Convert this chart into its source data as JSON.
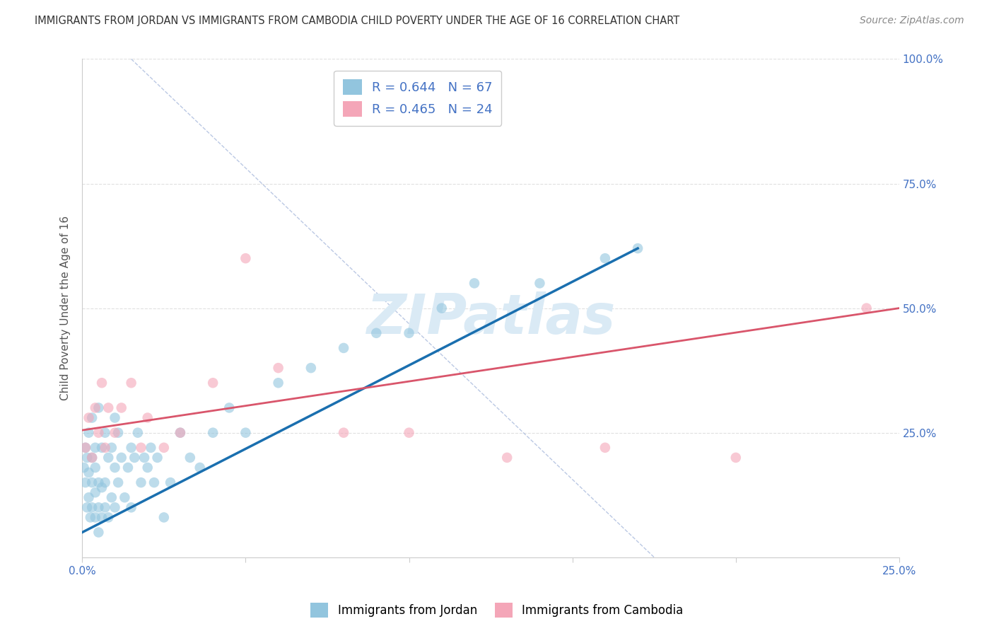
{
  "title": "IMMIGRANTS FROM JORDAN VS IMMIGRANTS FROM CAMBODIA CHILD POVERTY UNDER THE AGE OF 16 CORRELATION CHART",
  "source": "Source: ZipAtlas.com",
  "ylabel": "Child Poverty Under the Age of 16",
  "legend_labels": [
    "Immigrants from Jordan",
    "Immigrants from Cambodia"
  ],
  "R_jordan": 0.644,
  "N_jordan": 67,
  "R_cambodia": 0.465,
  "N_cambodia": 24,
  "color_jordan": "#92c5de",
  "color_cambodia": "#f4a6b8",
  "color_jordan_line": "#1a6faf",
  "color_cambodia_line": "#d9556b",
  "xlim": [
    0.0,
    0.25
  ],
  "ylim": [
    0.0,
    1.0
  ],
  "xticks": [
    0.0,
    0.05,
    0.1,
    0.15,
    0.2,
    0.25
  ],
  "yticks": [
    0.0,
    0.25,
    0.5,
    0.75,
    1.0
  ],
  "xtick_labels": [
    "0.0%",
    "",
    "",
    "",
    "",
    "25.0%"
  ],
  "ytick_labels_right": [
    "",
    "25.0%",
    "50.0%",
    "75.0%",
    "100.0%"
  ],
  "jordan_x": [
    0.0005,
    0.001,
    0.001,
    0.0015,
    0.0015,
    0.002,
    0.002,
    0.002,
    0.0025,
    0.003,
    0.003,
    0.003,
    0.003,
    0.004,
    0.004,
    0.004,
    0.004,
    0.005,
    0.005,
    0.005,
    0.005,
    0.006,
    0.006,
    0.006,
    0.007,
    0.007,
    0.007,
    0.008,
    0.008,
    0.009,
    0.009,
    0.01,
    0.01,
    0.01,
    0.011,
    0.011,
    0.012,
    0.013,
    0.014,
    0.015,
    0.015,
    0.016,
    0.017,
    0.018,
    0.019,
    0.02,
    0.021,
    0.022,
    0.023,
    0.025,
    0.027,
    0.03,
    0.033,
    0.036,
    0.04,
    0.045,
    0.05,
    0.06,
    0.07,
    0.08,
    0.09,
    0.1,
    0.11,
    0.12,
    0.14,
    0.16,
    0.17
  ],
  "jordan_y": [
    0.18,
    0.15,
    0.22,
    0.1,
    0.2,
    0.12,
    0.17,
    0.25,
    0.08,
    0.1,
    0.15,
    0.2,
    0.28,
    0.08,
    0.13,
    0.18,
    0.22,
    0.05,
    0.1,
    0.15,
    0.3,
    0.08,
    0.14,
    0.22,
    0.1,
    0.15,
    0.25,
    0.08,
    0.2,
    0.12,
    0.22,
    0.1,
    0.18,
    0.28,
    0.15,
    0.25,
    0.2,
    0.12,
    0.18,
    0.1,
    0.22,
    0.2,
    0.25,
    0.15,
    0.2,
    0.18,
    0.22,
    0.15,
    0.2,
    0.08,
    0.15,
    0.25,
    0.2,
    0.18,
    0.25,
    0.3,
    0.25,
    0.35,
    0.38,
    0.42,
    0.45,
    0.45,
    0.5,
    0.55,
    0.55,
    0.6,
    0.62
  ],
  "cambodia_x": [
    0.001,
    0.002,
    0.003,
    0.004,
    0.005,
    0.006,
    0.007,
    0.008,
    0.01,
    0.012,
    0.015,
    0.018,
    0.02,
    0.025,
    0.03,
    0.04,
    0.05,
    0.06,
    0.08,
    0.1,
    0.13,
    0.16,
    0.2,
    0.24
  ],
  "cambodia_y": [
    0.22,
    0.28,
    0.2,
    0.3,
    0.25,
    0.35,
    0.22,
    0.3,
    0.25,
    0.3,
    0.35,
    0.22,
    0.28,
    0.22,
    0.25,
    0.35,
    0.6,
    0.38,
    0.25,
    0.25,
    0.2,
    0.22,
    0.2,
    0.5
  ],
  "watermark_color": "#daeaf5",
  "background_color": "#ffffff",
  "grid_color": "#e0e0e0",
  "title_color": "#333333",
  "axis_label_color": "#555555",
  "tick_color_right": "#4472c4",
  "tick_color_bottom": "#4472c4",
  "legend_text_color": "#4472c4"
}
